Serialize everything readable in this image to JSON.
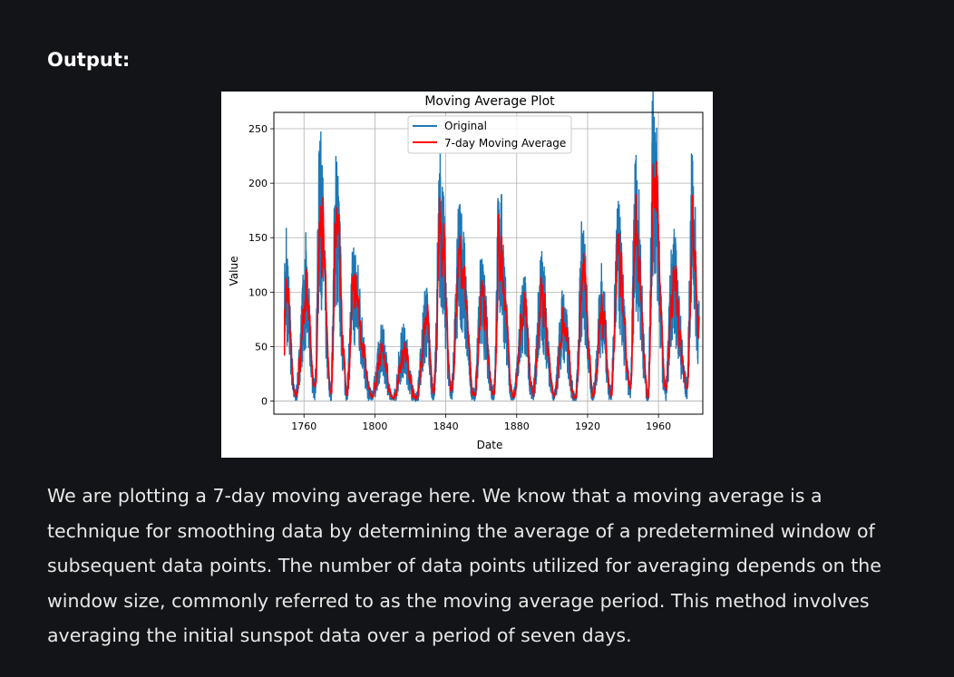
{
  "heading": "Output:",
  "paragraph": "We are plotting a 7-day moving average here. We know that a moving average is a technique for smoothing data by determining the average of a predetermined window of subsequent data points. The number of data points utilized for averaging depends on the window size, commonly referred to as the moving average period. This method involves averaging the initial sunspot data over a period of seven days.",
  "colors": {
    "page_background": "#131417",
    "original_series": "#1f77b4",
    "moving_average_series": "#ff0000"
  },
  "chart_data": {
    "type": "line",
    "title": "Moving Average Plot",
    "xlabel": "Date",
    "ylabel": "Value",
    "xlim": [
      1743,
      1985
    ],
    "ylim": [
      -12,
      265
    ],
    "xticks": [
      1760,
      1800,
      1840,
      1880,
      1920,
      1960
    ],
    "yticks": [
      0,
      50,
      100,
      150,
      200,
      250
    ],
    "grid": true,
    "legend_position": "top-center",
    "legend": [
      "Original",
      "7-day Moving Average"
    ],
    "approx_cycle_peaks": [
      {
        "x": 1750,
        "original": 159,
        "moving_average": 95
      },
      {
        "x": 1761,
        "original": 155,
        "moving_average": 92
      },
      {
        "x": 1769,
        "original": 239,
        "moving_average": 170
      },
      {
        "x": 1778,
        "original": 225,
        "moving_average": 160
      },
      {
        "x": 1788,
        "original": 141,
        "moving_average": 100
      },
      {
        "x": 1804,
        "original": 58,
        "moving_average": 45
      },
      {
        "x": 1816,
        "original": 60,
        "moving_average": 46
      },
      {
        "x": 1829,
        "original": 103,
        "moving_average": 72
      },
      {
        "x": 1837,
        "original": 206,
        "moving_average": 160
      },
      {
        "x": 1848,
        "original": 181,
        "moving_average": 130
      },
      {
        "x": 1860,
        "original": 116,
        "moving_average": 90
      },
      {
        "x": 1870,
        "original": 176,
        "moving_average": 140
      },
      {
        "x": 1884,
        "original": 103,
        "moving_average": 80
      },
      {
        "x": 1894,
        "original": 127,
        "moving_average": 95
      },
      {
        "x": 1906,
        "original": 91,
        "moving_average": 70
      },
      {
        "x": 1917,
        "original": 154,
        "moving_average": 115
      },
      {
        "x": 1928,
        "original": 110,
        "moving_average": 85
      },
      {
        "x": 1937,
        "original": 165,
        "moving_average": 125
      },
      {
        "x": 1947,
        "original": 201,
        "moving_average": 160
      },
      {
        "x": 1957,
        "original": 253,
        "moving_average": 215
      },
      {
        "x": 1968,
        "original": 135,
        "moving_average": 110
      },
      {
        "x": 1979,
        "original": 188,
        "moving_average": 160
      }
    ],
    "approx_cycle_minima": [
      {
        "x": 1745,
        "value": 10
      },
      {
        "x": 1755,
        "value": 4
      },
      {
        "x": 1766,
        "value": 11
      },
      {
        "x": 1775,
        "value": 7
      },
      {
        "x": 1784,
        "value": 10
      },
      {
        "x": 1798,
        "value": 4
      },
      {
        "x": 1810,
        "value": 0
      },
      {
        "x": 1823,
        "value": 1
      },
      {
        "x": 1833,
        "value": 7
      },
      {
        "x": 1843,
        "value": 10
      },
      {
        "x": 1856,
        "value": 4
      },
      {
        "x": 1867,
        "value": 7
      },
      {
        "x": 1878,
        "value": 3
      },
      {
        "x": 1889,
        "value": 6
      },
      {
        "x": 1901,
        "value": 3
      },
      {
        "x": 1913,
        "value": 1
      },
      {
        "x": 1923,
        "value": 6
      },
      {
        "x": 1933,
        "value": 6
      },
      {
        "x": 1944,
        "value": 10
      },
      {
        "x": 1954,
        "value": 4
      },
      {
        "x": 1964,
        "value": 10
      },
      {
        "x": 1976,
        "value": 12
      }
    ],
    "x_end": 1983,
    "end_value": 60
  }
}
